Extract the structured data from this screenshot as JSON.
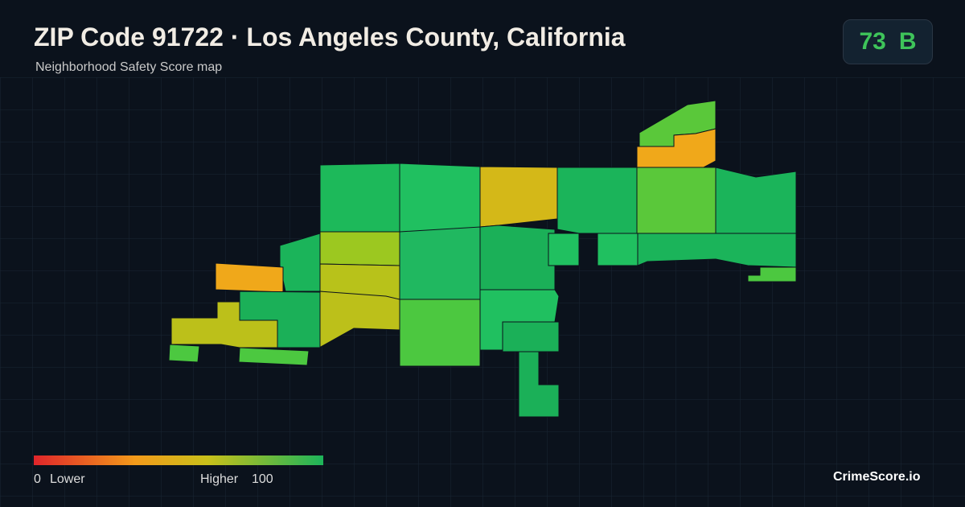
{
  "header": {
    "title": "ZIP Code 91722 · Los Angeles County, California",
    "subtitle": "Neighborhood Safety Score map"
  },
  "badge": {
    "score": 73,
    "grade": "B"
  },
  "legend": {
    "min": 0,
    "min_label": "Lower",
    "max_label": "Higher",
    "max": 100
  },
  "footer": {
    "brand": "CrimeScore.io"
  }
}
